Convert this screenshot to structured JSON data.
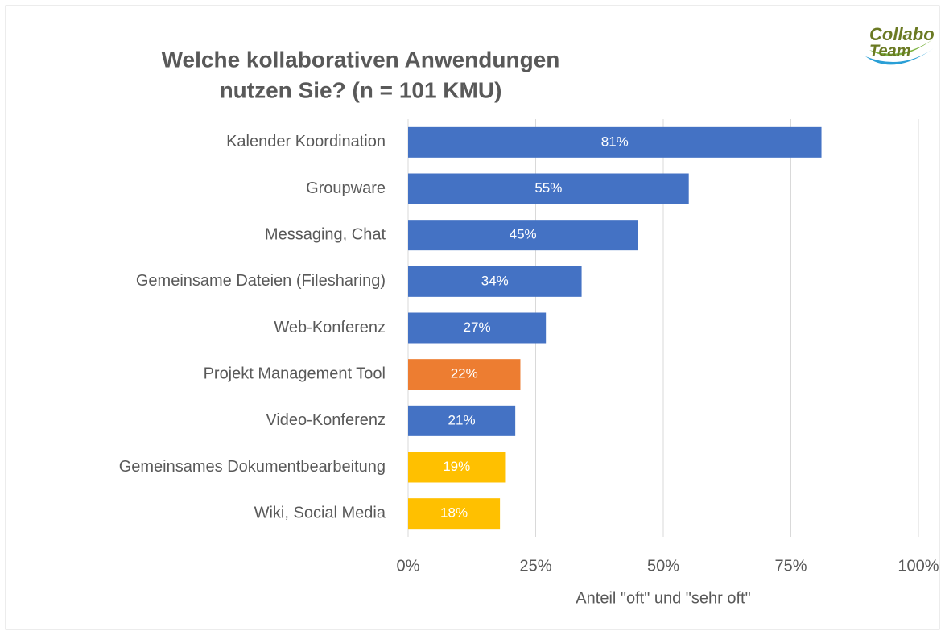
{
  "chart_data": {
    "type": "bar",
    "orientation": "horizontal",
    "title": [
      "Welche kollaborativen Anwendungen",
      "nutzen Sie? (n = 101 KMU)"
    ],
    "logo": [
      "Collabo",
      "Team"
    ],
    "categories": [
      "Kalender Koordination",
      "Groupware",
      "Messaging, Chat",
      "Gemeinsame Dateien (Filesharing)",
      "Web-Konferenz",
      "Projekt Management Tool",
      "Video-Konferenz",
      "Gemeinsames Dokumentbearbeitung",
      "Wiki, Social Media"
    ],
    "values": [
      81,
      55,
      45,
      34,
      27,
      22,
      21,
      19,
      18
    ],
    "value_labels": [
      "81%",
      "55%",
      "45%",
      "34%",
      "27%",
      "22%",
      "21%",
      "19%",
      "18%"
    ],
    "colors": [
      "#4472c4",
      "#4472c4",
      "#4472c4",
      "#4472c4",
      "#4472c4",
      "#ed7d31",
      "#4472c4",
      "#ffc000",
      "#ffc000"
    ],
    "xlabel": "Anteil \"oft\" und \"sehr oft\"",
    "xlim": [
      0,
      100
    ],
    "xticks": [
      {
        "value": 0,
        "label": "0%"
      },
      {
        "value": 25,
        "label": "25%"
      },
      {
        "value": 50,
        "label": "50%"
      },
      {
        "value": 75,
        "label": "75%"
      },
      {
        "value": 100,
        "label": "100%"
      }
    ],
    "grid": true
  }
}
